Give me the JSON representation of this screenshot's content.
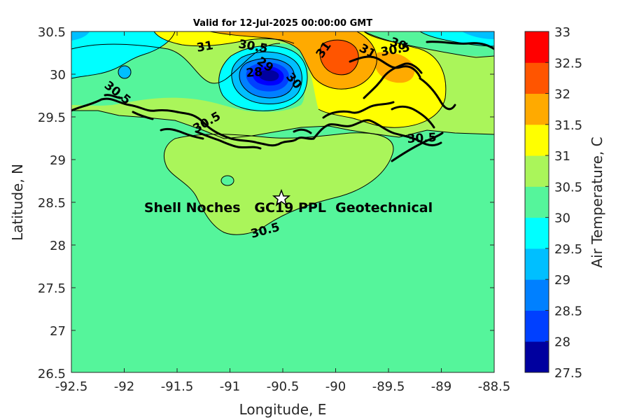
{
  "title": "Valid for 12-Jul-2025 00:00:00 GMT",
  "xlabel": "Longitude, E",
  "ylabel": "Latitude, N",
  "x_ticks": [
    "-92.5",
    "-92",
    "-91.5",
    "-91",
    "-90.5",
    "-90",
    "-89.5",
    "-89",
    "-88.5"
  ],
  "y_ticks": [
    "30.5",
    "30",
    "29.5",
    "29",
    "28.5",
    "28",
    "27.5",
    "27",
    "26.5"
  ],
  "colorbar": {
    "label": "Air Temperature, C",
    "ticks": [
      "33",
      "32.5",
      "32",
      "31.5",
      "31",
      "30.5",
      "30",
      "29.5",
      "29",
      "28.5",
      "28",
      "27.5"
    ],
    "colors": [
      "#00009f",
      "#0000ff",
      "#0040ff",
      "#0080ff",
      "#00bfff",
      "#00ffff",
      "#55f59b",
      "#aaf55a",
      "#ffff00",
      "#ffaa00",
      "#ff5500",
      "#ff0000",
      "#aa0000"
    ]
  },
  "site": {
    "name": "Shell Noches   GC19 PPL  Geotechnical",
    "marker": "star-icon"
  },
  "contour_labels": [
    "31",
    "30.5",
    "29",
    "30",
    "28",
    "30.5",
    "30.5",
    "30.5",
    "30.5",
    "31",
    "30.5",
    "31",
    "30",
    "30.5",
    "30.5"
  ],
  "chart_data": {
    "type": "contour-map",
    "title": "Valid for 12-Jul-2025 00:00:00 GMT",
    "xlabel": "Longitude, E",
    "ylabel": "Latitude, N",
    "xlim": [
      -92.5,
      -88.5
    ],
    "ylim": [
      26.5,
      30.5
    ],
    "colorbar_range": [
      27.5,
      33
    ],
    "colorbar_step": 0.5,
    "colorbar_label": "Air Temperature, C",
    "site_location": {
      "lon": -90.52,
      "lat": 28.55
    },
    "background_value_range": [
      30.0,
      30.5
    ]
  }
}
